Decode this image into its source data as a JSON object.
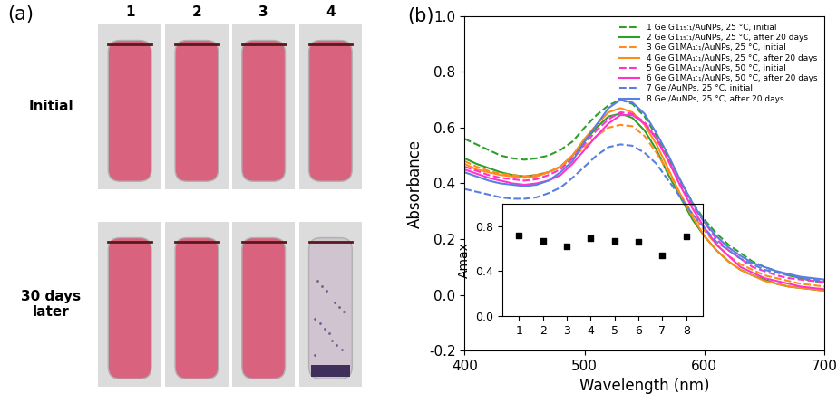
{
  "panel_a": {
    "label": "(a)",
    "tubes": [
      "1",
      "2",
      "3",
      "4"
    ],
    "rows": [
      "Initial",
      "30 days later"
    ]
  },
  "chart_data": [
    {
      "type": "line",
      "title": "(b)",
      "x_label": "Wavelength (nm)",
      "y_label": "Absorbance",
      "xlim": [
        400,
        700
      ],
      "ylim": [
        -0.2,
        1.0
      ],
      "xticks": [
        400,
        500,
        600,
        700
      ],
      "yticks": [
        -0.2,
        {
          "value": 0,
          "label": "0.0"
        },
        0.2,
        0.4,
        0.6,
        0.8,
        {
          "value": 1,
          "label": "1.0"
        }
      ],
      "legend": "upper right",
      "x": [
        400,
        410,
        420,
        430,
        440,
        450,
        460,
        470,
        480,
        490,
        500,
        510,
        520,
        530,
        540,
        550,
        560,
        570,
        580,
        590,
        600,
        610,
        620,
        630,
        640,
        650,
        660,
        670,
        680,
        690,
        700
      ],
      "series": [
        {
          "name": "1 GelG1₁₅:₁/AuNPs, 25 °C, initial",
          "color": "#2ca02c",
          "line_style": "dashed",
          "values": [
            0.56,
            0.54,
            0.52,
            0.5,
            0.49,
            0.485,
            0.49,
            0.5,
            0.52,
            0.55,
            0.6,
            0.645,
            0.68,
            0.7,
            0.685,
            0.64,
            0.57,
            0.49,
            0.41,
            0.33,
            0.27,
            0.22,
            0.18,
            0.15,
            0.12,
            0.1,
            0.085,
            0.07,
            0.06,
            0.05,
            0.045
          ]
        },
        {
          "name": "2 GelG1₁₅:₁/AuNPs, 25 °C, after 20 days",
          "color": "#2ca02c",
          "line_style": "solid",
          "values": [
            0.49,
            0.47,
            0.455,
            0.44,
            0.43,
            0.425,
            0.43,
            0.44,
            0.46,
            0.5,
            0.55,
            0.6,
            0.64,
            0.65,
            0.635,
            0.59,
            0.52,
            0.43,
            0.35,
            0.27,
            0.21,
            0.16,
            0.12,
            0.09,
            0.07,
            0.055,
            0.04,
            0.03,
            0.025,
            0.02,
            0.015
          ]
        },
        {
          "name": "3 GelG1MA₁:₁/AuNPs, 25 °C, initial",
          "color": "#ff8c1a",
          "line_style": "dashed",
          "values": [
            0.48,
            0.46,
            0.445,
            0.435,
            0.43,
            0.425,
            0.43,
            0.44,
            0.46,
            0.49,
            0.53,
            0.57,
            0.6,
            0.61,
            0.605,
            0.57,
            0.51,
            0.44,
            0.36,
            0.29,
            0.23,
            0.18,
            0.14,
            0.11,
            0.09,
            0.07,
            0.06,
            0.05,
            0.04,
            0.035,
            0.03
          ]
        },
        {
          "name": "4 GelG1MA₁:₁/AuNPs, 25 °C, after 20 days",
          "color": "#ff8c1a",
          "line_style": "solid",
          "values": [
            0.47,
            0.45,
            0.44,
            0.43,
            0.425,
            0.42,
            0.425,
            0.44,
            0.46,
            0.5,
            0.56,
            0.61,
            0.655,
            0.67,
            0.655,
            0.61,
            0.54,
            0.45,
            0.36,
            0.28,
            0.21,
            0.16,
            0.12,
            0.09,
            0.07,
            0.05,
            0.04,
            0.03,
            0.025,
            0.02,
            0.015
          ]
        },
        {
          "name": "5 GelG1MA₁:₁/AuNPs, 50 °C, initial",
          "color": "#ff33cc",
          "line_style": "dashed",
          "values": [
            0.46,
            0.445,
            0.43,
            0.42,
            0.415,
            0.41,
            0.415,
            0.43,
            0.45,
            0.49,
            0.54,
            0.59,
            0.63,
            0.655,
            0.65,
            0.62,
            0.56,
            0.48,
            0.4,
            0.32,
            0.26,
            0.2,
            0.16,
            0.13,
            0.1,
            0.085,
            0.07,
            0.06,
            0.055,
            0.05,
            0.045
          ]
        },
        {
          "name": "6 GelG1MA₁:₁/AuNPs, 50 °C, after 20 days",
          "color": "#ff33cc",
          "line_style": "solid",
          "values": [
            0.45,
            0.435,
            0.42,
            0.41,
            0.4,
            0.395,
            0.4,
            0.41,
            0.43,
            0.47,
            0.52,
            0.57,
            0.615,
            0.645,
            0.645,
            0.615,
            0.56,
            0.48,
            0.39,
            0.31,
            0.24,
            0.18,
            0.14,
            0.1,
            0.08,
            0.06,
            0.05,
            0.04,
            0.03,
            0.025,
            0.02
          ]
        },
        {
          "name": "7 Gel/AuNPs, 25 °C, initial",
          "color": "#5b7fe0",
          "line_style": "dashed",
          "values": [
            0.38,
            0.37,
            0.36,
            0.35,
            0.345,
            0.345,
            0.35,
            0.365,
            0.385,
            0.42,
            0.46,
            0.5,
            0.53,
            0.54,
            0.535,
            0.51,
            0.47,
            0.41,
            0.35,
            0.29,
            0.24,
            0.19,
            0.16,
            0.13,
            0.11,
            0.09,
            0.08,
            0.07,
            0.06,
            0.055,
            0.05
          ]
        },
        {
          "name": "8 Gel/AuNPs, 25 °C, after 20 days",
          "color": "#5b7fe0",
          "line_style": "solid",
          "values": [
            0.44,
            0.425,
            0.41,
            0.4,
            0.395,
            0.39,
            0.395,
            0.41,
            0.44,
            0.48,
            0.55,
            0.61,
            0.67,
            0.7,
            0.69,
            0.65,
            0.58,
            0.5,
            0.41,
            0.33,
            0.26,
            0.21,
            0.17,
            0.14,
            0.115,
            0.1,
            0.085,
            0.075,
            0.065,
            0.06,
            0.055
          ]
        }
      ]
    },
    {
      "type": "scatter",
      "y_label": "Amax",
      "marker": "square",
      "color": "#000000",
      "x": [
        1,
        2,
        3,
        4,
        5,
        6,
        7,
        8
      ],
      "values": [
        0.72,
        0.67,
        0.62,
        0.69,
        0.67,
        0.66,
        0.54,
        0.71
      ],
      "xlim": [
        0.3,
        8.7
      ],
      "ylim": [
        0,
        1.0
      ],
      "xticks": [
        1,
        2,
        3,
        4,
        5,
        6,
        7,
        8
      ],
      "yticks": [
        {
          "value": 0,
          "label": "0.0"
        },
        0.4,
        0.8
      ]
    }
  ]
}
